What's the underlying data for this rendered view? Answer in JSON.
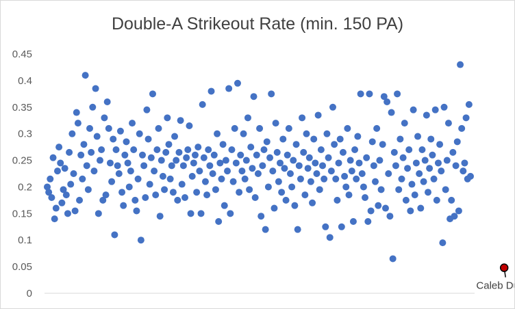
{
  "chart_data": {
    "type": "scatter",
    "title": "Double-A Strikeout Rate (min. 150 PA)",
    "xlabel": "",
    "ylabel": "",
    "ylim": [
      0,
      0.45
    ],
    "y_ticks": [
      "0",
      "0.05",
      "0.1",
      "0.15",
      "0.2",
      "0.25",
      "0.3",
      "0.35",
      "0.4",
      "0.45"
    ],
    "grid": false,
    "legend": "none",
    "colors": {
      "series": "#4472c4",
      "highlight": "#c00000"
    },
    "highlight": {
      "name": "Caleb Durbin",
      "x": 312,
      "y": 0.048
    },
    "series": [
      {
        "name": "",
        "values": [
          0.2,
          0.19,
          0.215,
          0.18,
          0.255,
          0.14,
          0.16,
          0.23,
          0.275,
          0.245,
          0.17,
          0.195,
          0.235,
          0.185,
          0.15,
          0.265,
          0.205,
          0.3,
          0.225,
          0.155,
          0.34,
          0.32,
          0.175,
          0.26,
          0.215,
          0.28,
          0.41,
          0.24,
          0.195,
          0.31,
          0.265,
          0.35,
          0.23,
          0.385,
          0.295,
          0.15,
          0.25,
          0.27,
          0.175,
          0.33,
          0.185,
          0.36,
          0.31,
          0.245,
          0.21,
          0.29,
          0.11,
          0.27,
          0.24,
          0.225,
          0.305,
          0.19,
          0.165,
          0.26,
          0.285,
          0.245,
          0.2,
          0.23,
          0.32,
          0.27,
          0.175,
          0.155,
          0.215,
          0.3,
          0.1,
          0.26,
          0.24,
          0.18,
          0.345,
          0.29,
          0.205,
          0.255,
          0.375,
          0.23,
          0.185,
          0.27,
          0.31,
          0.145,
          0.25,
          0.22,
          0.195,
          0.265,
          0.33,
          0.28,
          0.215,
          0.24,
          0.19,
          0.295,
          0.25,
          0.175,
          0.265,
          0.325,
          0.205,
          0.24,
          0.18,
          0.255,
          0.27,
          0.315,
          0.15,
          0.22,
          0.245,
          0.26,
          0.19,
          0.275,
          0.23,
          0.15,
          0.355,
          0.255,
          0.21,
          0.185,
          0.27,
          0.24,
          0.38,
          0.225,
          0.26,
          0.195,
          0.3,
          0.135,
          0.245,
          0.215,
          0.28,
          0.165,
          0.25,
          0.23,
          0.385,
          0.15,
          0.27,
          0.21,
          0.31,
          0.245,
          0.395,
          0.19,
          0.26,
          0.23,
          0.3,
          0.215,
          0.25,
          0.33,
          0.195,
          0.275,
          0.235,
          0.37,
          0.18,
          0.26,
          0.225,
          0.31,
          0.145,
          0.24,
          0.27,
          0.12,
          0.285,
          0.2,
          0.255,
          0.375,
          0.23,
          0.16,
          0.32,
          0.265,
          0.21,
          0.245,
          0.19,
          0.29,
          0.235,
          0.175,
          0.26,
          0.31,
          0.225,
          0.2,
          0.25,
          0.165,
          0.28,
          0.12,
          0.24,
          0.215,
          0.33,
          0.265,
          0.185,
          0.3,
          0.235,
          0.255,
          0.21,
          0.17,
          0.29,
          0.245,
          0.225,
          0.335,
          0.195,
          0.27,
          0.24,
          0.215,
          0.125,
          0.3,
          0.255,
          0.105,
          0.23,
          0.35,
          0.28,
          0.215,
          0.175,
          0.245,
          0.29,
          0.125,
          0.265,
          0.22,
          0.2,
          0.31,
          0.185,
          0.25,
          0.23,
          0.135,
          0.27,
          0.215,
          0.295,
          0.245,
          0.375,
          0.225,
          0.2,
          0.18,
          0.255,
          0.135,
          0.375,
          0.155,
          0.285,
          0.24,
          0.21,
          0.31,
          0.165,
          0.25,
          0.195,
          0.28,
          0.37,
          0.16,
          0.36,
          0.225,
          0.145,
          0.34,
          0.065,
          0.265,
          0.24,
          0.375,
          0.195,
          0.29,
          0.215,
          0.255,
          0.32,
          0.175,
          0.235,
          0.27,
          0.155,
          0.205,
          0.345,
          0.185,
          0.245,
          0.295,
          0.225,
          0.16,
          0.27,
          0.21,
          0.25,
          0.335,
          0.19,
          0.235,
          0.29,
          0.26,
          0.215,
          0.345,
          0.175,
          0.245,
          0.28,
          0.23,
          0.095,
          0.35,
          0.195,
          0.25,
          0.32,
          0.14,
          0.175,
          0.265,
          0.145,
          0.24,
          0.285,
          0.155,
          0.43,
          0.31,
          0.23,
          0.245,
          0.33,
          0.215,
          0.355,
          0.22
        ]
      }
    ]
  }
}
